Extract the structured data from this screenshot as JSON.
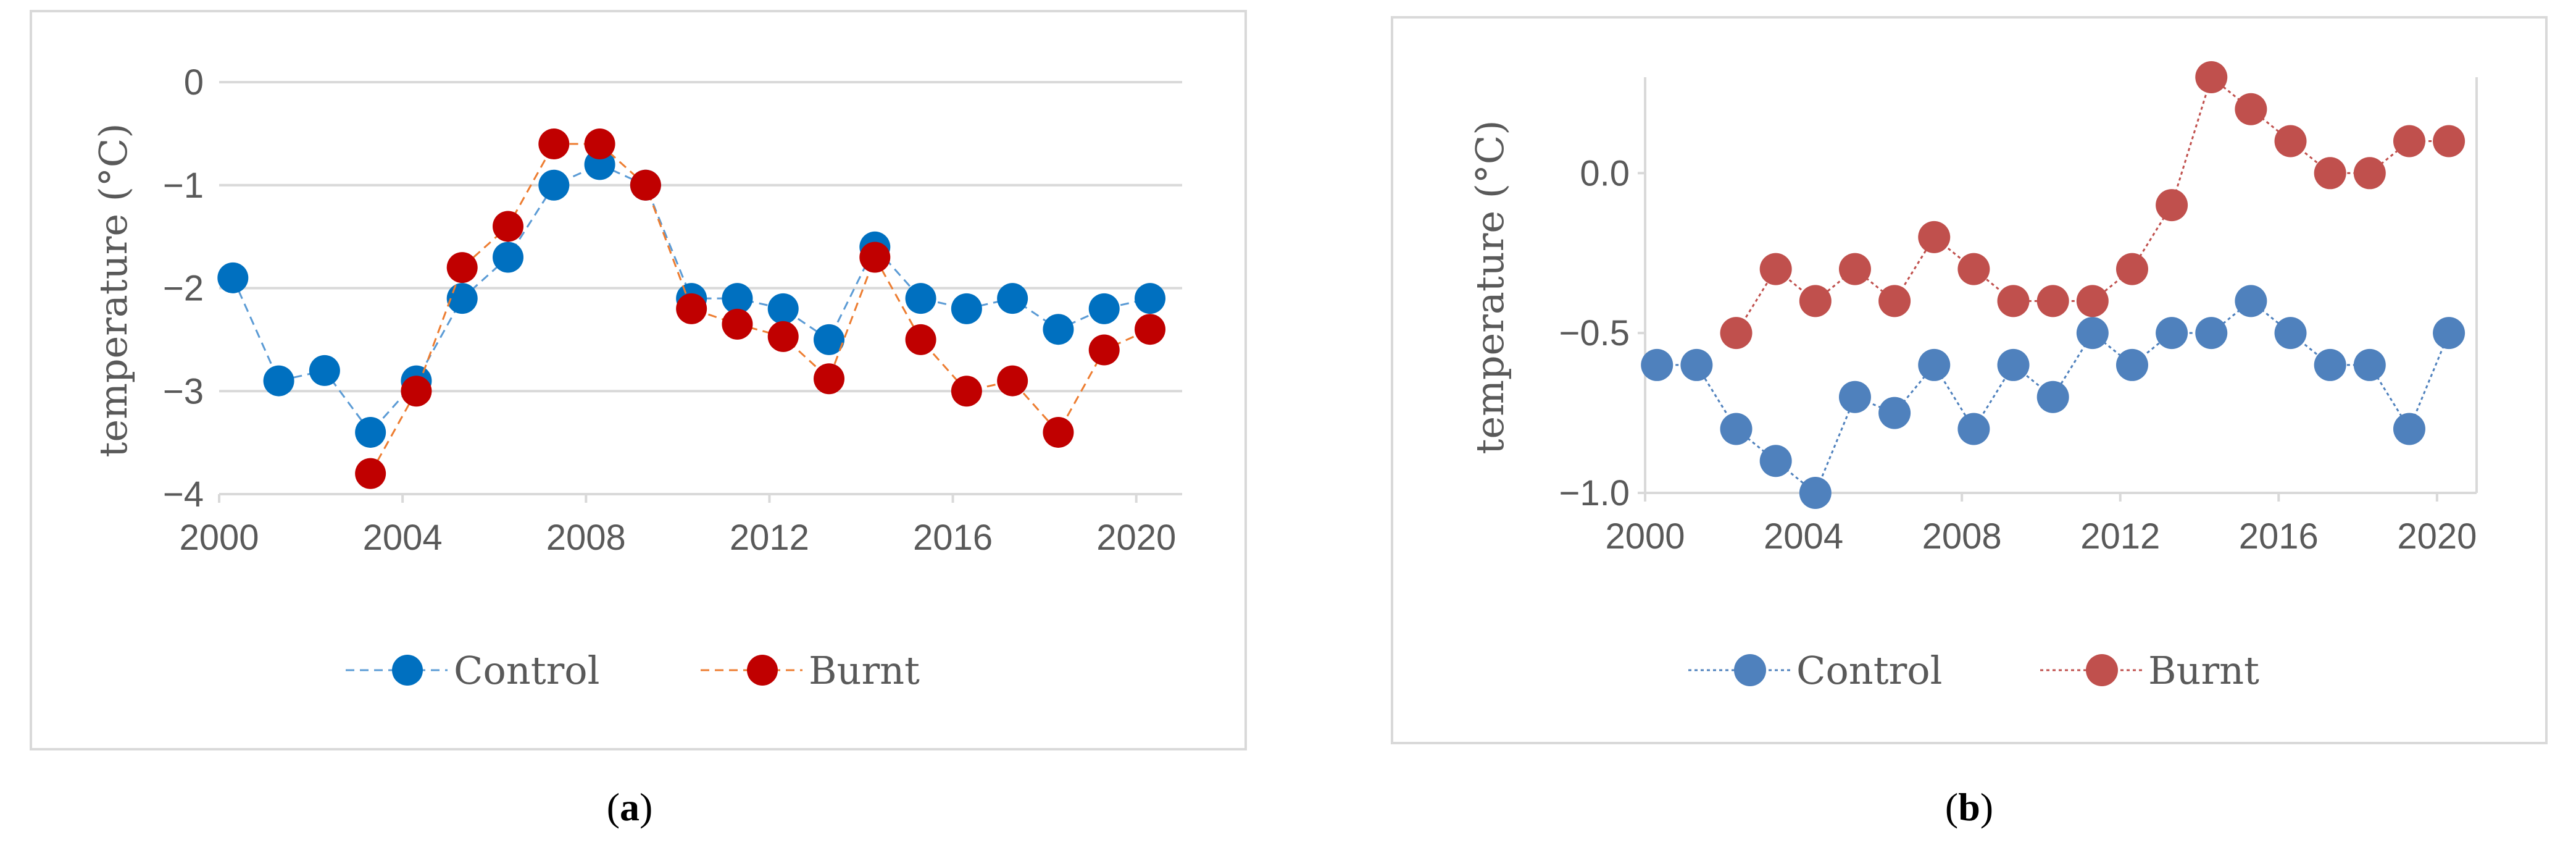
{
  "panels": [
    {
      "caption_prefix": "(",
      "caption_letter": "a",
      "caption_suffix": ")",
      "chart_data": {
        "type": "line",
        "style": "dashed line with circle markers",
        "ylabel": "temperature (°C)",
        "xlabel": "",
        "xlim": [
          2000,
          2021
        ],
        "ylim": [
          -4,
          0
        ],
        "x_ticks": [
          {
            "v": 2000,
            "label": "2000"
          },
          {
            "v": 2004,
            "label": "2004"
          },
          {
            "v": 2008,
            "label": "2008"
          },
          {
            "v": 2012,
            "label": "2012"
          },
          {
            "v": 2016,
            "label": "2016"
          },
          {
            "v": 2020,
            "label": "2020"
          }
        ],
        "y_ticks": [
          {
            "v": 0,
            "label": "0"
          },
          {
            "v": -1,
            "label": "−1"
          },
          {
            "v": -2,
            "label": "−2"
          },
          {
            "v": -3,
            "label": "−3"
          },
          {
            "v": -4,
            "label": "−4"
          }
        ],
        "grid": "horizontal",
        "legend_position": "bottom",
        "series": [
          {
            "name": "Control",
            "color": "#0070C0",
            "line_color": "#5B9BD5",
            "points": [
              [
                2000.3,
                -1.9
              ],
              [
                2001.3,
                -2.9
              ],
              [
                2002.3,
                -2.8
              ],
              [
                2003.3,
                -3.4
              ],
              [
                2004.3,
                -2.9
              ],
              [
                2005.3,
                -2.1
              ],
              [
                2006.3,
                -1.7
              ],
              [
                2007.3,
                -1.0
              ],
              [
                2008.3,
                -0.8
              ],
              [
                2009.3,
                -1.0
              ],
              [
                2010.3,
                -2.1
              ],
              [
                2011.3,
                -2.1
              ],
              [
                2012.3,
                -2.2
              ],
              [
                2013.3,
                -2.5
              ],
              [
                2014.3,
                -1.6
              ],
              [
                2015.3,
                -2.1
              ],
              [
                2016.3,
                -2.2
              ],
              [
                2017.3,
                -2.1
              ],
              [
                2018.3,
                -2.4
              ],
              [
                2019.3,
                -2.2
              ],
              [
                2020.3,
                -2.1
              ]
            ]
          },
          {
            "name": "Burnt",
            "color": "#C00000",
            "line_color": "#ED7D31",
            "points": [
              [
                2003.3,
                -3.8
              ],
              [
                2004.3,
                -3.0
              ],
              [
                2005.3,
                -1.8
              ],
              [
                2006.3,
                -1.4
              ],
              [
                2007.3,
                -0.6
              ],
              [
                2008.3,
                -0.6
              ],
              [
                2009.3,
                -1.0
              ],
              [
                2010.3,
                -2.2
              ],
              [
                2011.3,
                -2.35
              ],
              [
                2012.3,
                -2.47
              ],
              [
                2013.3,
                -2.88
              ],
              [
                2014.3,
                -1.7
              ],
              [
                2015.3,
                -2.5
              ],
              [
                2016.3,
                -3.0
              ],
              [
                2017.3,
                -2.9
              ],
              [
                2018.3,
                -3.4
              ],
              [
                2019.3,
                -2.6
              ],
              [
                2020.3,
                -2.4
              ]
            ]
          }
        ]
      }
    },
    {
      "caption_prefix": "(",
      "caption_letter": "b",
      "caption_suffix": ")",
      "chart_data": {
        "type": "line",
        "style": "dotted line with circle markers",
        "ylabel": "temperature (°C)",
        "xlabel": "",
        "xlim": [
          2000,
          2021
        ],
        "ylim": [
          -1.0,
          0.3
        ],
        "x_ticks": [
          {
            "v": 2000,
            "label": "2000"
          },
          {
            "v": 2004,
            "label": "2004"
          },
          {
            "v": 2008,
            "label": "2008"
          },
          {
            "v": 2012,
            "label": "2012"
          },
          {
            "v": 2016,
            "label": "2016"
          },
          {
            "v": 2020,
            "label": "2020"
          }
        ],
        "y_ticks": [
          {
            "v": 0.0,
            "label": "0.0"
          },
          {
            "v": -0.5,
            "label": "−0.5"
          },
          {
            "v": -1.0,
            "label": "−1.0"
          }
        ],
        "grid": "none",
        "legend_position": "bottom",
        "series": [
          {
            "name": "Control",
            "color": "#4F81BD",
            "line_color": "#4F81BD",
            "points": [
              [
                2000.3,
                -0.6
              ],
              [
                2001.3,
                -0.6
              ],
              [
                2002.3,
                -0.8
              ],
              [
                2003.3,
                -0.9
              ],
              [
                2004.3,
                -1.0
              ],
              [
                2005.3,
                -0.7
              ],
              [
                2006.3,
                -0.75
              ],
              [
                2007.3,
                -0.6
              ],
              [
                2008.3,
                -0.8
              ],
              [
                2009.3,
                -0.6
              ],
              [
                2010.3,
                -0.7
              ],
              [
                2011.3,
                -0.5
              ],
              [
                2012.3,
                -0.6
              ],
              [
                2013.3,
                -0.5
              ],
              [
                2014.3,
                -0.5
              ],
              [
                2015.3,
                -0.4
              ],
              [
                2016.3,
                -0.5
              ],
              [
                2017.3,
                -0.6
              ],
              [
                2018.3,
                -0.6
              ],
              [
                2019.3,
                -0.8
              ],
              [
                2020.3,
                -0.5
              ]
            ]
          },
          {
            "name": "Burnt",
            "color": "#C0504D",
            "line_color": "#C0504D",
            "points": [
              [
                2002.3,
                -0.5
              ],
              [
                2003.3,
                -0.3
              ],
              [
                2004.3,
                -0.4
              ],
              [
                2005.3,
                -0.3
              ],
              [
                2006.3,
                -0.4
              ],
              [
                2007.3,
                -0.2
              ],
              [
                2008.3,
                -0.3
              ],
              [
                2009.3,
                -0.4
              ],
              [
                2010.3,
                -0.4
              ],
              [
                2011.3,
                -0.4
              ],
              [
                2012.3,
                -0.3
              ],
              [
                2013.3,
                -0.1
              ],
              [
                2014.3,
                0.3
              ],
              [
                2015.3,
                0.2
              ],
              [
                2016.3,
                0.1
              ],
              [
                2017.3,
                0.0
              ],
              [
                2018.3,
                0.0
              ],
              [
                2019.3,
                0.1
              ],
              [
                2020.3,
                0.1
              ]
            ]
          }
        ]
      }
    }
  ]
}
